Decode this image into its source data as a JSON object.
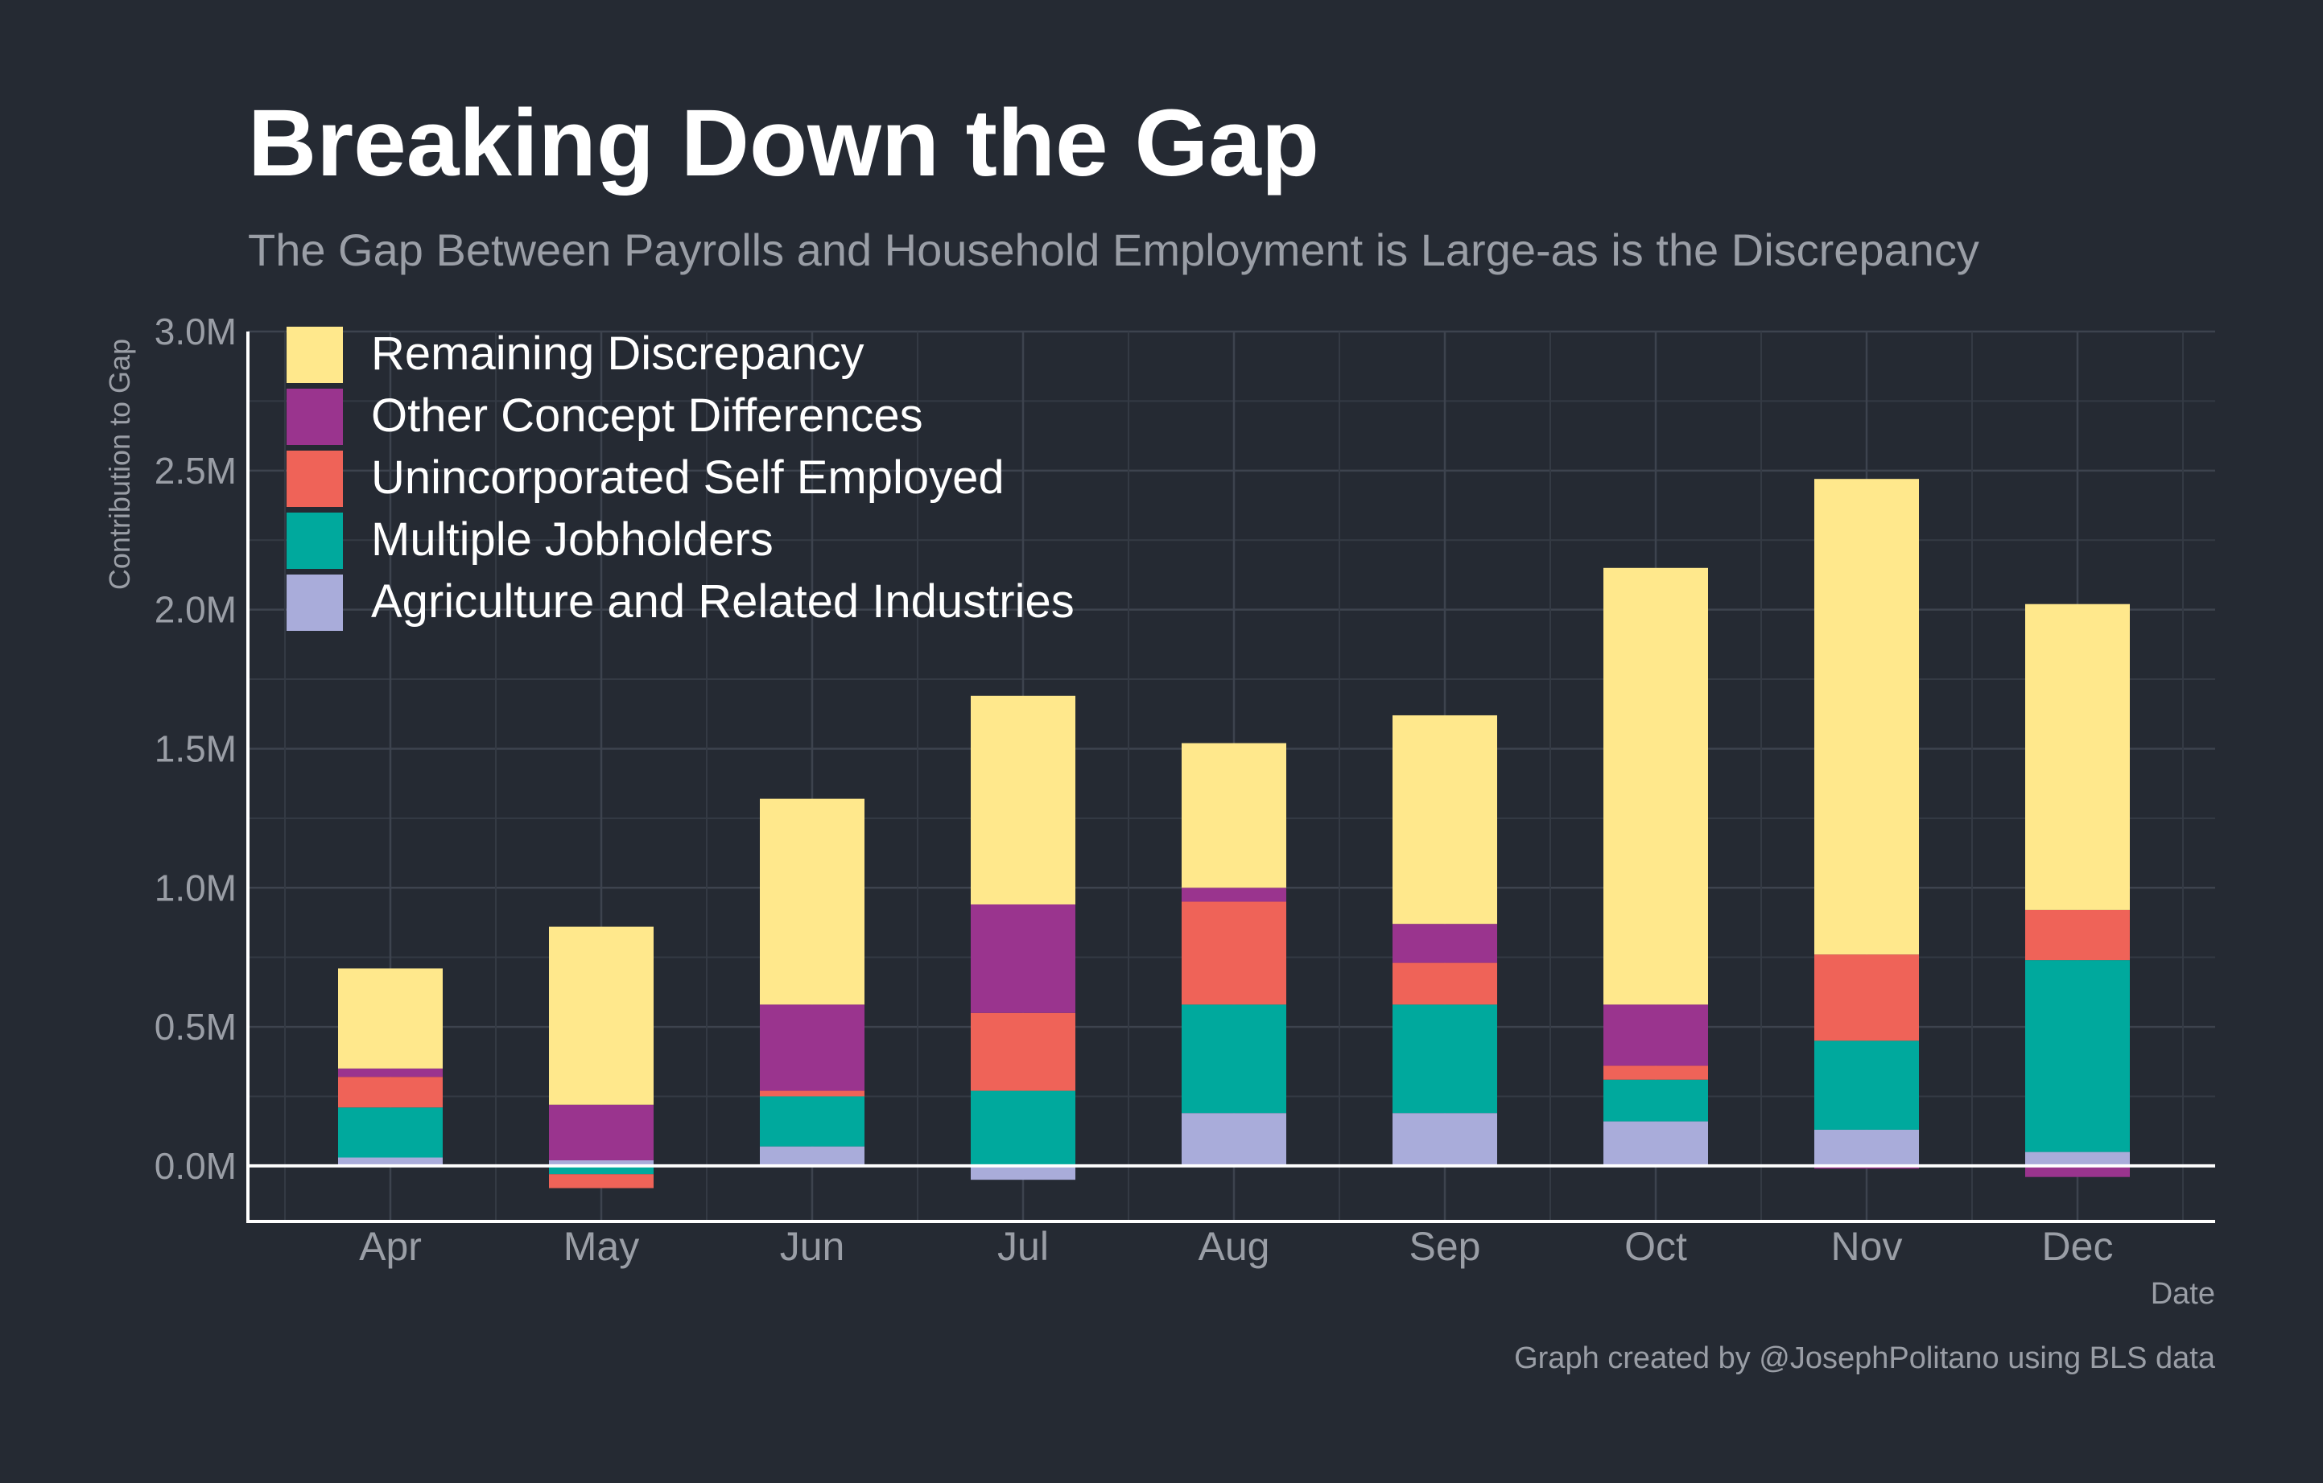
{
  "chart_data": {
    "type": "bar",
    "stacked": true,
    "title": "Breaking Down the Gap",
    "subtitle": "The Gap Between Payrolls and Household Employment is Large-as is the Discrepancy",
    "xlabel": "Date",
    "ylabel": "Contribution to Gap",
    "caption": "Graph created by @JosephPolitano using BLS data",
    "categories": [
      "Apr",
      "May",
      "Jun",
      "Jul",
      "Aug",
      "Sep",
      "Oct",
      "Nov",
      "Dec"
    ],
    "ylim": [
      -0.2,
      3.0
    ],
    "yticks": [
      0.0,
      0.5,
      1.0,
      1.5,
      2.0,
      2.5,
      3.0
    ],
    "ytick_labels": [
      "0.0M",
      "0.5M",
      "1.0M",
      "1.5M",
      "2.0M",
      "2.5M",
      "3.0M"
    ],
    "grid": true,
    "legend_position": "top-left",
    "series": [
      {
        "name": "Agriculture and Related Industries",
        "color": "#a9acda",
        "values": [
          0.03,
          0.02,
          0.07,
          -0.05,
          0.19,
          0.19,
          0.16,
          0.13,
          0.05
        ]
      },
      {
        "name": "Multiple Jobholders",
        "color": "#00a99d",
        "values": [
          0.18,
          -0.03,
          0.18,
          0.27,
          0.39,
          0.39,
          0.15,
          0.32,
          0.69
        ]
      },
      {
        "name": "Unincorporated Self Employed",
        "color": "#ef6358",
        "values": [
          0.11,
          -0.05,
          0.02,
          0.28,
          0.37,
          0.15,
          0.05,
          0.31,
          0.18
        ]
      },
      {
        "name": "Other Concept Differences",
        "color": "#9a348e",
        "values": [
          0.03,
          0.2,
          0.31,
          0.39,
          0.05,
          0.14,
          0.22,
          -0.01,
          -0.04
        ]
      },
      {
        "name": "Remaining Discrepancy",
        "color": "#ffe88c",
        "values": [
          0.36,
          0.64,
          0.74,
          0.75,
          0.52,
          0.75,
          1.57,
          1.71,
          1.1
        ]
      }
    ],
    "legend_order": [
      "Remaining Discrepancy",
      "Other Concept Differences",
      "Unincorporated Self Employed",
      "Multiple Jobholders",
      "Agriculture and Related Industries"
    ]
  }
}
